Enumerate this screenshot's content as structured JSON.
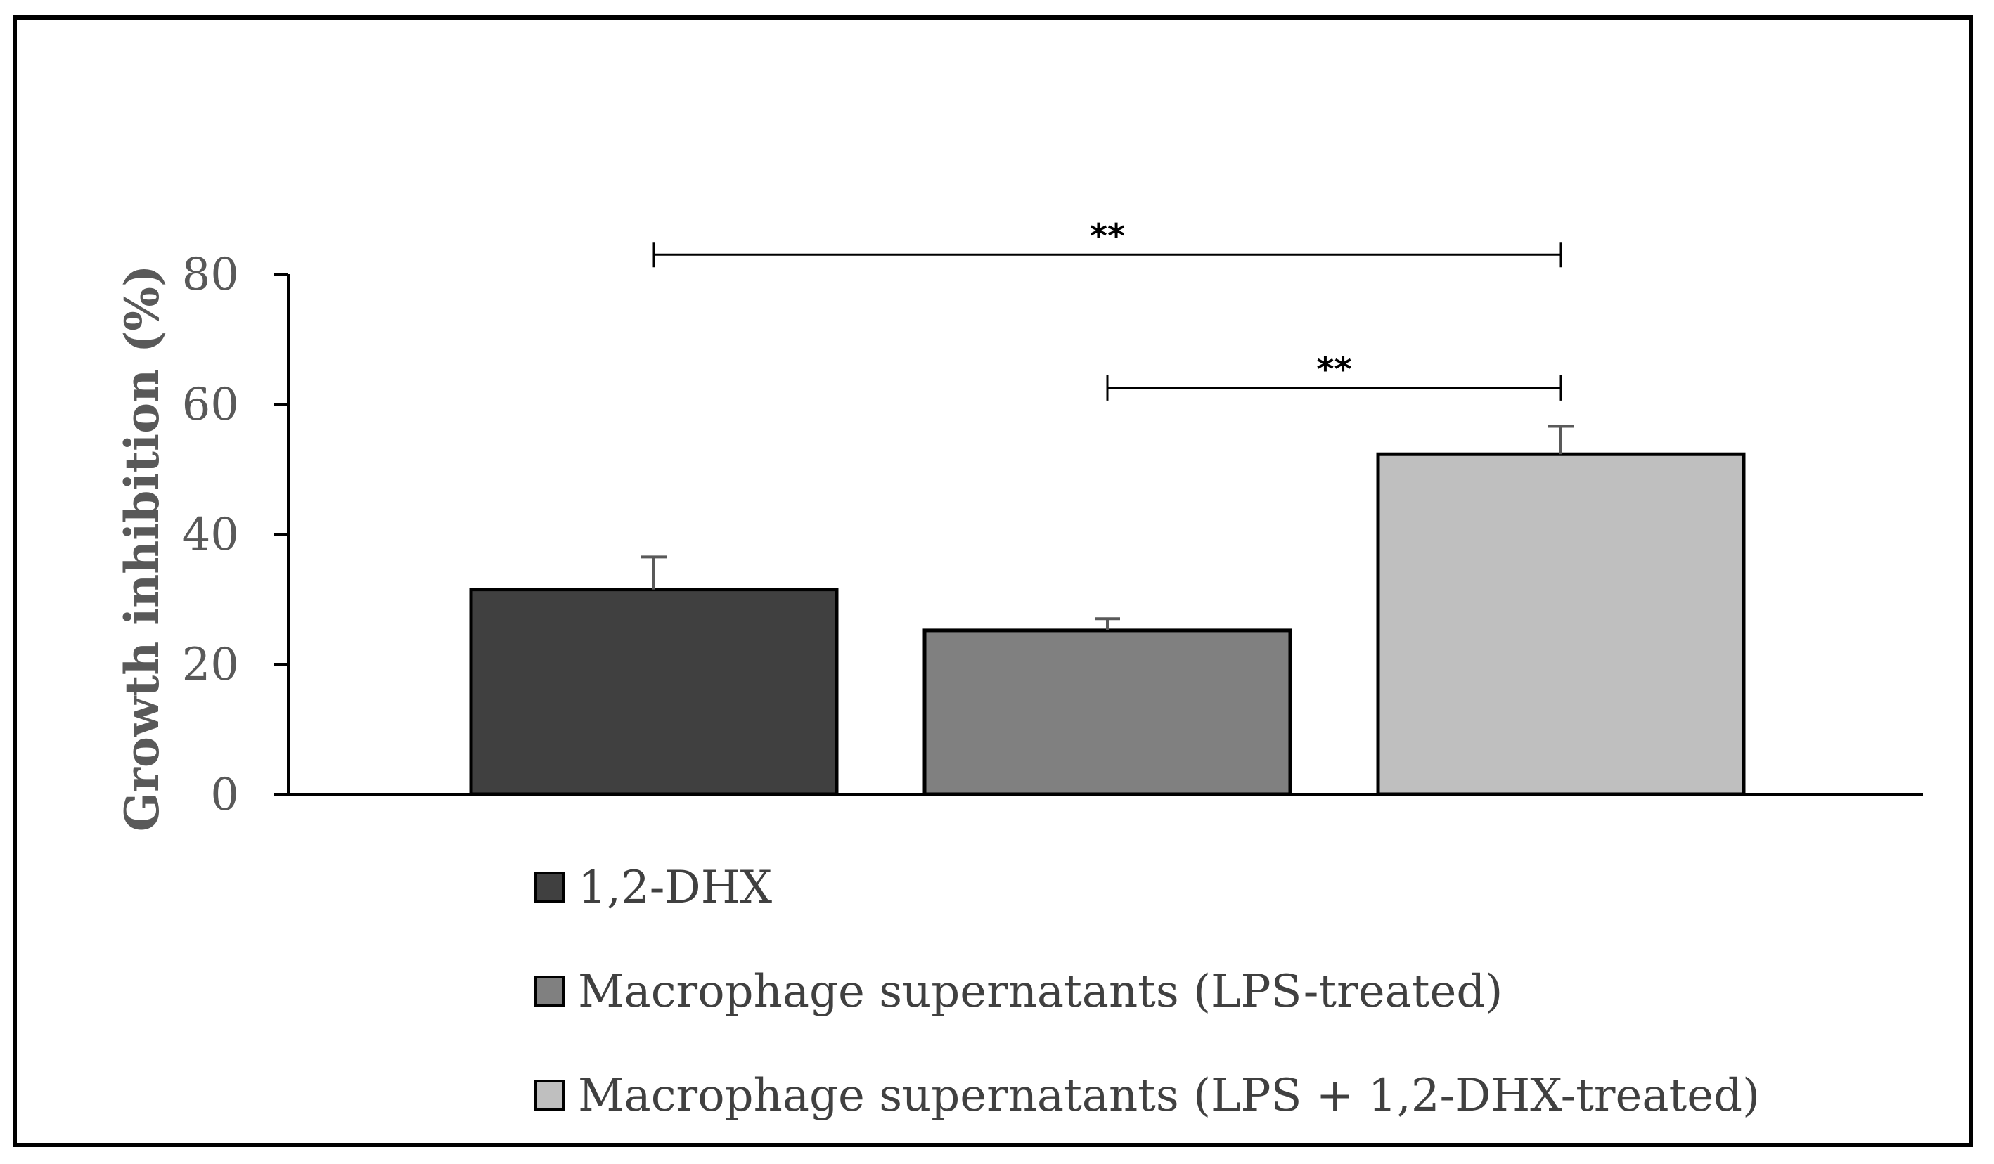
{
  "chart_data": {
    "type": "bar",
    "title": "",
    "xlabel": "",
    "ylabel": "Growth inhibition (%)",
    "ylim": [
      0,
      80
    ],
    "yticks": [
      0,
      20,
      40,
      60,
      80
    ],
    "grid": false,
    "legend_position": "bottom",
    "categories": [
      "1,2-DHX",
      "Macrophage supernatants (LPS-treated)",
      "Macrophage supernatants (LPS + 1,2-DHX-treated)"
    ],
    "values": [
      31.5,
      25.2,
      52.3
    ],
    "errors": [
      5.0,
      1.8,
      4.3
    ],
    "colors": [
      "#404040",
      "#808080",
      "#bfbfbf"
    ],
    "significance": [
      {
        "from": 0,
        "to": 2,
        "label": "**",
        "y": 83
      },
      {
        "from": 1,
        "to": 2,
        "label": "**",
        "y": 62.5
      }
    ]
  }
}
